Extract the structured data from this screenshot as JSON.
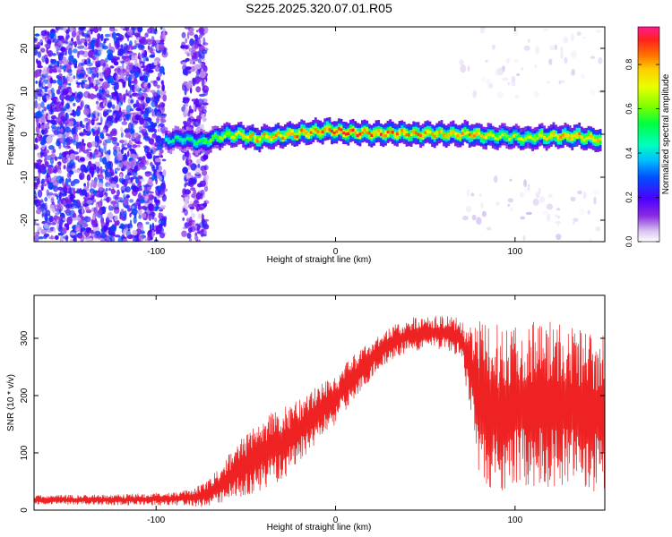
{
  "figure": {
    "title": "S225.2025.320.07.01.R05"
  },
  "chart_data": [
    {
      "type": "heatmap",
      "xlabel": "Height of straight line (km)",
      "ylabel": "Frequency (Hz)",
      "xlim": [
        -168,
        150
      ],
      "ylim": [
        -25,
        25
      ],
      "x_ticks": [
        -100,
        0,
        100
      ],
      "y_ticks": [
        -20,
        -10,
        0,
        10,
        20
      ],
      "grid": false,
      "colorbar": {
        "label": "Normalized spectral amplitude",
        "range": [
          0,
          0.97
        ],
        "ticks": [
          0.0,
          0.2,
          0.4,
          0.6,
          0.8
        ],
        "colors": [
          "#ffffff",
          "#d8c2f0",
          "#8a2be2",
          "#4b00ff",
          "#0050ff",
          "#00bfff",
          "#00ffbf",
          "#00ff40",
          "#7fff00",
          "#e8ff00",
          "#ffd000",
          "#ff7000",
          "#ff2020",
          "#ff1a8c"
        ]
      },
      "ridge": {
        "description_free": true,
        "x": [
          -95,
          -85,
          -75,
          -65,
          -55,
          -45,
          -35,
          -25,
          -15,
          -5,
          5,
          15,
          25,
          35,
          45,
          55,
          65,
          75,
          85,
          95,
          105,
          115,
          125,
          135,
          148
        ],
        "frequency": [
          -1.5,
          -1.0,
          -2.0,
          -0.5,
          0.0,
          -1.0,
          -0.5,
          0.0,
          0.5,
          1.0,
          0.5,
          0.3,
          0.2,
          0.3,
          0.0,
          0.2,
          0.0,
          0.0,
          -0.5,
          -0.5,
          -1.0,
          -0.5,
          -0.5,
          -0.5,
          -1.5
        ],
        "peak_amplitude": [
          0.45,
          0.5,
          0.55,
          0.65,
          0.75,
          0.8,
          0.8,
          0.85,
          0.85,
          0.9,
          0.95,
          0.9,
          0.9,
          0.85,
          0.85,
          0.8,
          0.8,
          0.85,
          0.75,
          0.7,
          0.7,
          0.75,
          0.8,
          0.85,
          0.8
        ]
      },
      "noise_regions": [
        {
          "x_range": [
            -168,
            -95
          ],
          "frequency_range": [
            -25,
            25
          ],
          "amplitude": 0.3
        },
        {
          "x_range": [
            -85,
            -72
          ],
          "frequency_range": [
            -25,
            25
          ],
          "amplitude": 0.25
        },
        {
          "x_range": [
            70,
            150
          ],
          "frequency_range": [
            -25,
            -10
          ],
          "amplitude": 0.05
        },
        {
          "x_range": [
            70,
            150
          ],
          "frequency_range": [
            8,
            25
          ],
          "amplitude": 0.05
        }
      ]
    },
    {
      "type": "line",
      "xlabel": "Height of straight line (km)",
      "ylabel": "SNR (10 * v/v)",
      "xlim": [
        -168,
        150
      ],
      "ylim": [
        0,
        375
      ],
      "x_ticks": [
        -100,
        0,
        100
      ],
      "y_ticks": [
        0,
        100,
        200,
        300
      ],
      "grid": false,
      "color": "#ee2222",
      "envelope": {
        "x": [
          -168,
          -120,
          -90,
          -80,
          -75,
          -70,
          -60,
          -50,
          -40,
          -30,
          -20,
          -10,
          0,
          10,
          20,
          30,
          40,
          50,
          60,
          70,
          75,
          80,
          90,
          100,
          110,
          120,
          130,
          140,
          150
        ],
        "mean": [
          18,
          18,
          20,
          22,
          25,
          30,
          55,
          80,
          100,
          115,
          140,
          170,
          195,
          230,
          265,
          290,
          305,
          310,
          310,
          300,
          250,
          190,
          175,
          180,
          185,
          185,
          180,
          175,
          170
        ],
        "amplitude": [
          8,
          10,
          12,
          15,
          20,
          25,
          40,
          55,
          65,
          65,
          55,
          50,
          45,
          40,
          35,
          30,
          30,
          30,
          30,
          35,
          80,
          140,
          150,
          150,
          150,
          150,
          145,
          140,
          140
        ]
      }
    }
  ]
}
